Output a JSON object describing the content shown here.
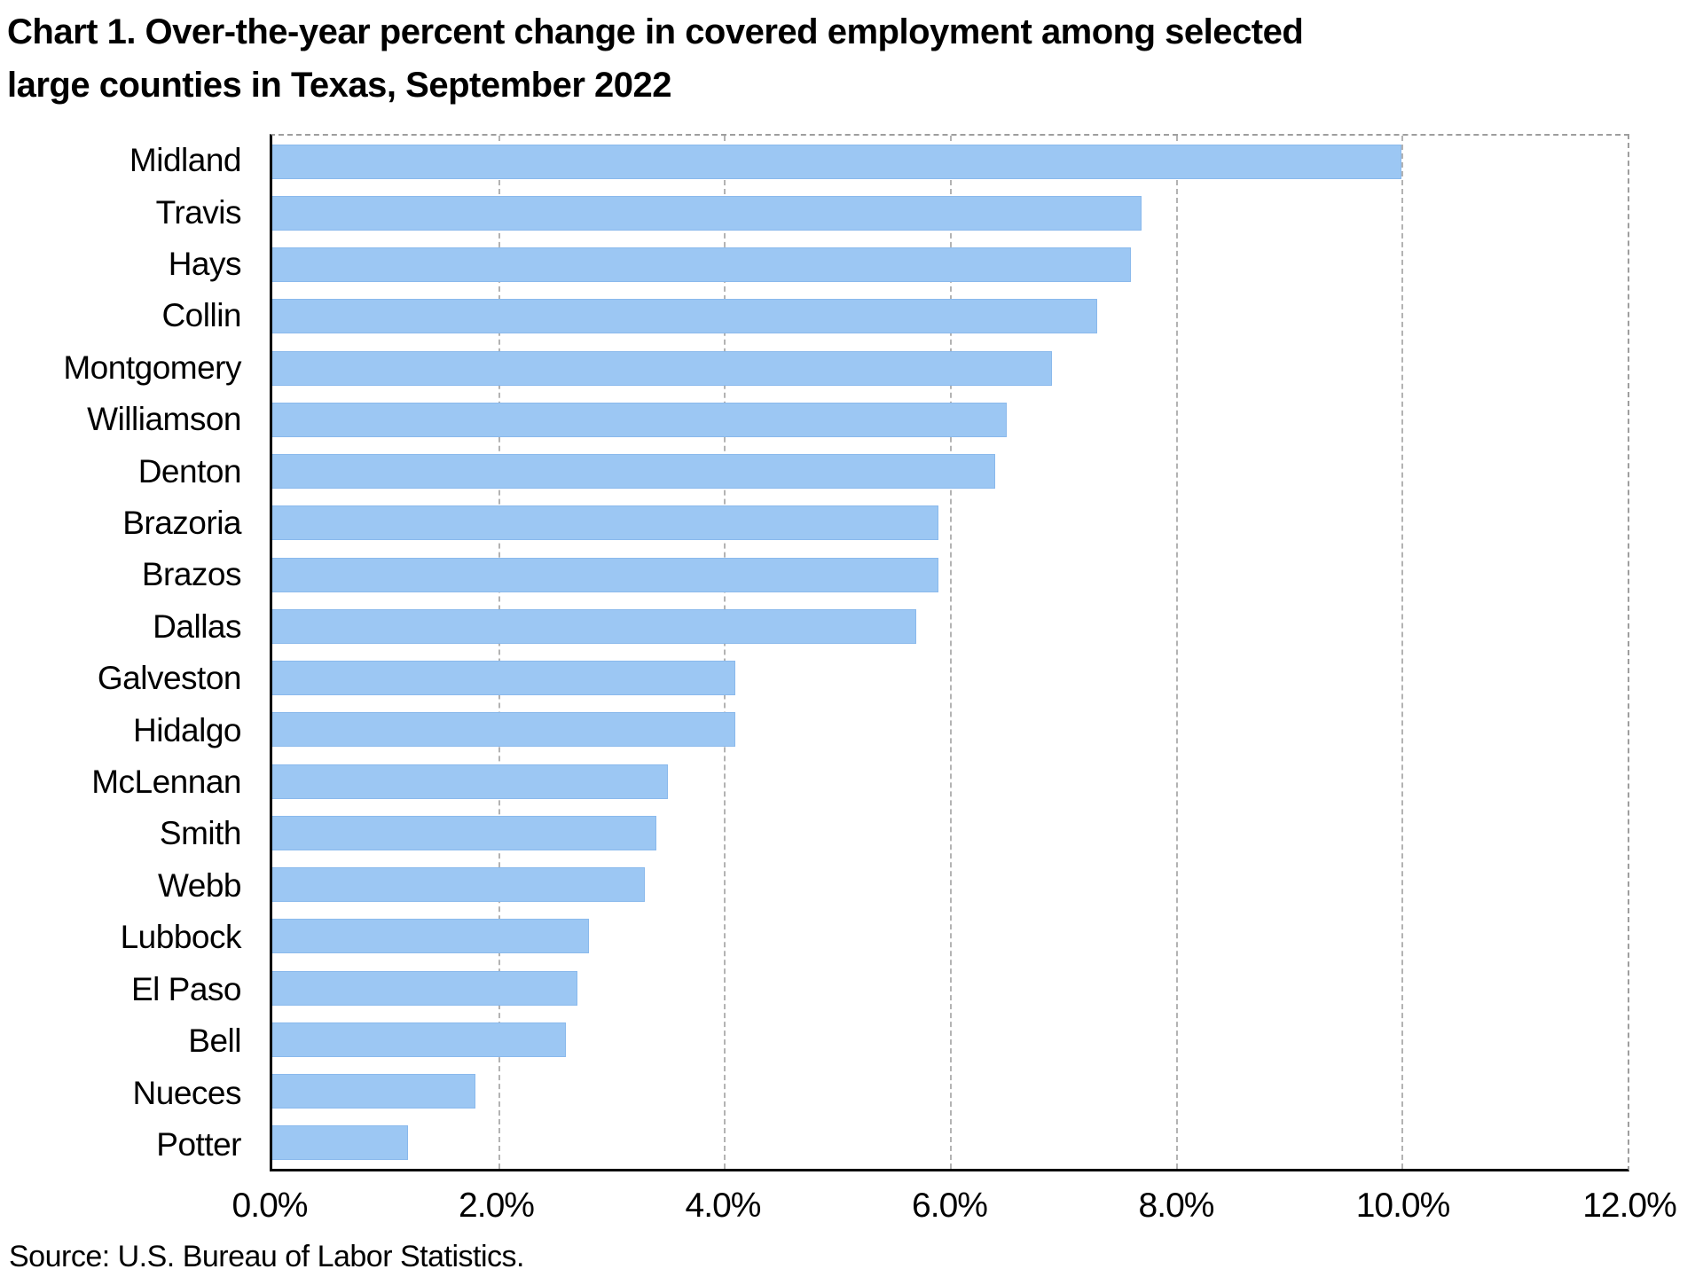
{
  "title": {
    "line1": "Chart 1. Over-the-year percent change in covered employment among selected",
    "line2": "large counties in Texas, September 2022"
  },
  "source": "Source: U.S. Bureau of Labor Statistics.",
  "colors": {
    "bar": "#9cc7f3",
    "bar_edge": "#8ab9ec",
    "gridline": "#b3b3b3",
    "plot_border": "#9e9e9e",
    "axis": "#000000"
  },
  "chart_data": {
    "type": "bar",
    "orientation": "horizontal",
    "title": "Chart 1. Over-the-year percent change in covered employment among selected large counties in Texas, September 2022",
    "categories": [
      "Midland",
      "Travis",
      "Hays",
      "Collin",
      "Montgomery",
      "Williamson",
      "Denton",
      "Brazoria",
      "Brazos",
      "Dallas",
      "Galveston",
      "Hidalgo",
      "McLennan",
      "Smith",
      "Webb",
      "Lubbock",
      "El Paso",
      "Bell",
      "Nueces",
      "Potter"
    ],
    "values": [
      10.0,
      7.7,
      7.6,
      7.3,
      6.9,
      6.5,
      6.4,
      5.9,
      5.9,
      5.7,
      4.1,
      4.1,
      3.5,
      3.4,
      3.3,
      2.8,
      2.7,
      2.6,
      1.8,
      1.2
    ],
    "value_unit": "percent",
    "xlim": [
      0,
      12
    ],
    "x_tick_labels": [
      "0.0%",
      "2.0%",
      "4.0%",
      "6.0%",
      "8.0%",
      "10.0%",
      "12.0%"
    ],
    "x_tick_values": [
      0,
      2,
      4,
      6,
      8,
      10,
      12
    ],
    "gridlines_at": [
      2,
      4,
      6,
      8,
      10
    ],
    "grid": "vertical-dashed",
    "legend": "none"
  }
}
